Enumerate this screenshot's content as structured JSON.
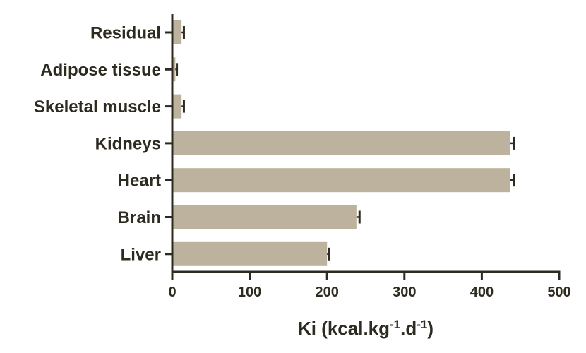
{
  "chart_data": {
    "type": "bar",
    "orientation": "horizontal",
    "categories": [
      "Residual",
      "Adipose tissue",
      "Skeletal muscle",
      "Kidneys",
      "Heart",
      "Brain",
      "Liver"
    ],
    "values": [
      12,
      4,
      12,
      437,
      437,
      238,
      200
    ],
    "errors": [
      3,
      2,
      3,
      5,
      5,
      4,
      3
    ],
    "title": "",
    "xlabel": "Ki (kcal.kg",
    "xlabel_sup1": "-1",
    "xlabel_mid": ".d",
    "xlabel_sup2": "-1",
    "xlabel_end": ")",
    "ylabel": "",
    "xlim": [
      0,
      500
    ],
    "xticks": [
      "0",
      "100",
      "200",
      "300",
      "400",
      "500"
    ],
    "grid": false,
    "legend": "none",
    "colors": {
      "bar": "#bcb29d",
      "axis": "#2d2a1f",
      "text": "#2d2a1f"
    }
  }
}
